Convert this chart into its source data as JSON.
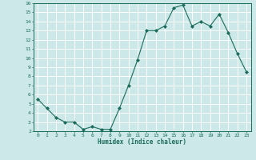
{
  "x": [
    0,
    1,
    2,
    3,
    4,
    5,
    6,
    7,
    8,
    9,
    10,
    11,
    12,
    13,
    14,
    15,
    16,
    17,
    18,
    19,
    20,
    21,
    22,
    23
  ],
  "y": [
    5.5,
    4.5,
    3.5,
    3.0,
    3.0,
    2.2,
    2.5,
    2.2,
    2.2,
    4.5,
    7.0,
    9.8,
    13.0,
    13.0,
    13.5,
    15.5,
    15.8,
    13.5,
    14.0,
    13.5,
    14.8,
    12.8,
    10.5,
    8.5
  ],
  "line_color": "#1a6b5a",
  "marker": "D",
  "marker_size": 2,
  "bg_color": "#cce8e8",
  "grid_color": "#ffffff",
  "xlabel": "Humidex (Indice chaleur)",
  "xlim": [
    -0.5,
    23.5
  ],
  "ylim": [
    2,
    16
  ],
  "yticks": [
    2,
    3,
    4,
    5,
    6,
    7,
    8,
    9,
    10,
    11,
    12,
    13,
    14,
    15,
    16
  ],
  "xticks": [
    0,
    1,
    2,
    3,
    4,
    5,
    6,
    7,
    8,
    9,
    10,
    11,
    12,
    13,
    14,
    15,
    16,
    17,
    18,
    19,
    20,
    21,
    22,
    23
  ],
  "xtick_labels": [
    "0",
    "1",
    "2",
    "3",
    "4",
    "5",
    "6",
    "7",
    "8",
    "9",
    "10",
    "11",
    "12",
    "13",
    "14",
    "15",
    "16",
    "17",
    "18",
    "19",
    "20",
    "21",
    "22",
    "23"
  ],
  "tick_color": "#1a6b5a",
  "label_color": "#1a6b5a",
  "linewidth": 0.8
}
